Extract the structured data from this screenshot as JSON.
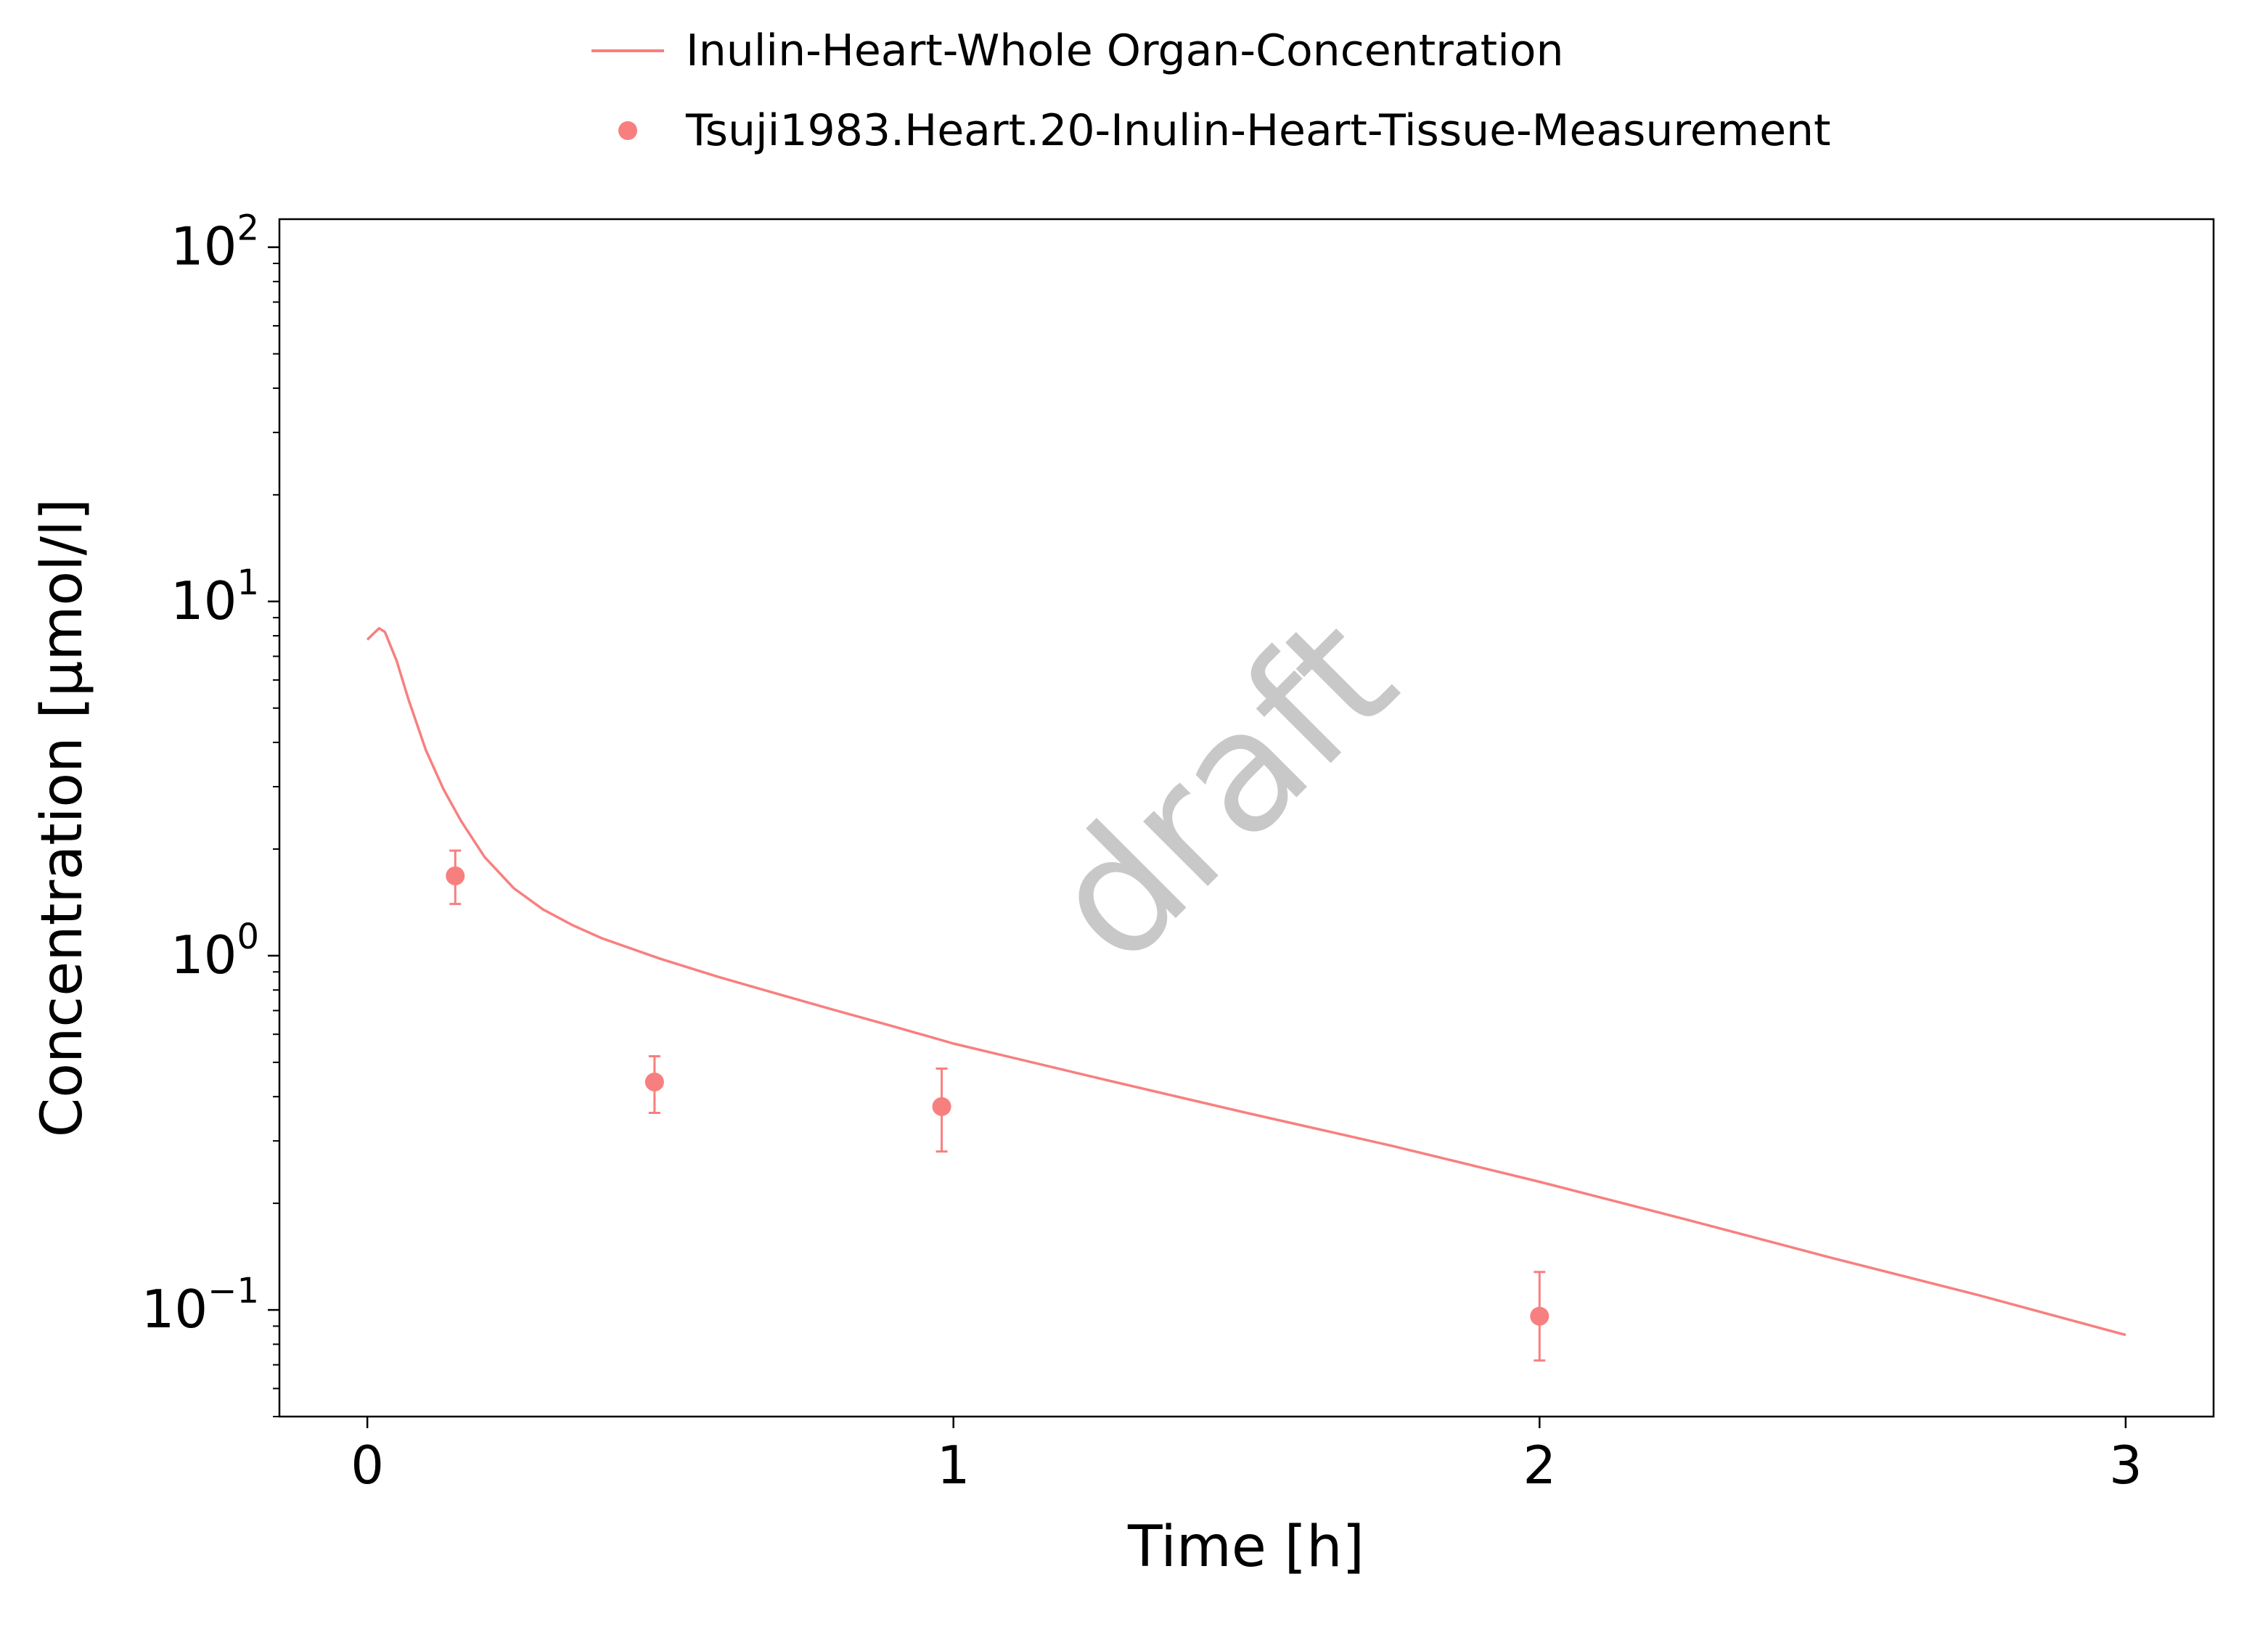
{
  "chart_data": {
    "type": "line",
    "xlabel": "Time [h]",
    "ylabel": "Concentration [µmol/l]",
    "xlim": [
      -0.15,
      3.15
    ],
    "ylim": [
      0.05,
      120
    ],
    "yscale": "log",
    "x_ticks": [
      {
        "value": 0,
        "label": "0"
      },
      {
        "value": 1,
        "label": "1"
      },
      {
        "value": 2,
        "label": "2"
      },
      {
        "value": 3,
        "label": "3"
      }
    ],
    "y_ticks": [
      {
        "value": 0.1,
        "base": "10",
        "exponent": "−1"
      },
      {
        "value": 1,
        "base": "10",
        "exponent": "0"
      },
      {
        "value": 10,
        "base": "10",
        "exponent": "1"
      },
      {
        "value": 100,
        "base": "10",
        "exponent": "2"
      }
    ],
    "grid": false,
    "legend_position": "top-center",
    "watermark": "draft",
    "series": [
      {
        "name": "Inulin-Heart-Whole Organ-Concentration",
        "kind": "line",
        "color": "#f87f7f",
        "x": [
          0.0,
          0.01,
          0.02,
          0.03,
          0.05,
          0.07,
          0.1,
          0.13,
          0.16,
          0.2,
          0.25,
          0.3,
          0.35,
          0.4,
          0.5,
          0.6,
          0.7,
          0.8,
          0.9,
          1.0,
          1.25,
          1.5,
          1.75,
          2.0,
          2.25,
          2.5,
          2.75,
          3.0
        ],
        "y": [
          7.8,
          8.1,
          8.4,
          8.2,
          6.8,
          5.3,
          3.8,
          2.95,
          2.4,
          1.9,
          1.55,
          1.35,
          1.22,
          1.12,
          0.98,
          0.87,
          0.78,
          0.7,
          0.63,
          0.565,
          0.45,
          0.36,
          0.29,
          0.23,
          0.18,
          0.14,
          0.11,
          0.085
        ]
      },
      {
        "name": "Tsuji1983.Heart.20-Inulin-Heart-Tissue-Measurement",
        "kind": "scatter",
        "color": "#f87f7f",
        "points": [
          {
            "x": 0.15,
            "y": 1.68,
            "lower": 1.4,
            "upper": 1.98
          },
          {
            "x": 0.49,
            "y": 0.44,
            "lower": 0.36,
            "upper": 0.52
          },
          {
            "x": 0.98,
            "y": 0.375,
            "lower": 0.28,
            "upper": 0.48
          },
          {
            "x": 2.0,
            "y": 0.096,
            "lower": 0.072,
            "upper": 0.128
          }
        ]
      }
    ]
  }
}
